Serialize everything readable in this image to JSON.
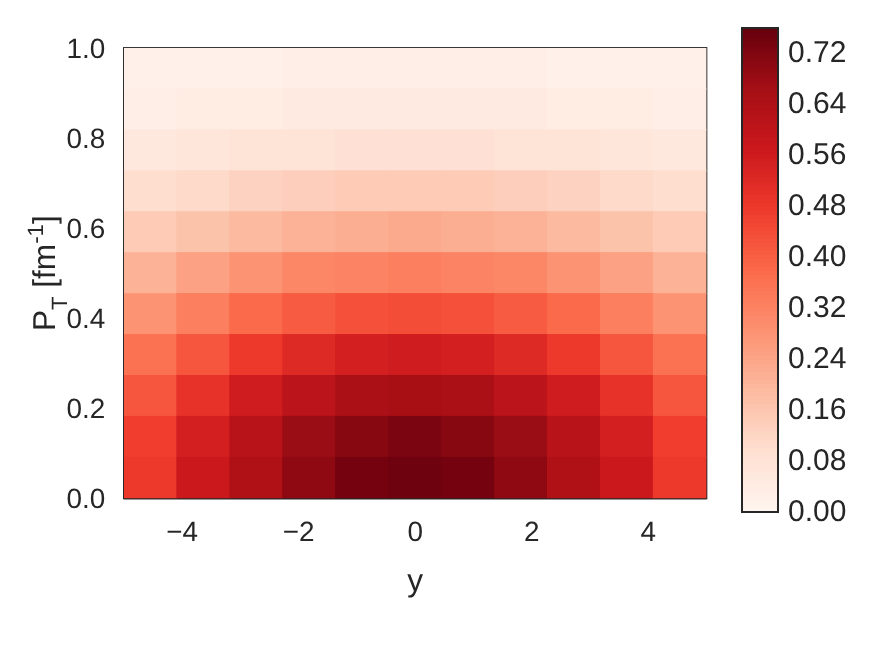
{
  "chart_data": {
    "type": "heatmap",
    "xlabel": "y",
    "ylabel": "P$_{T}$ [fm$^{-1}$]",
    "xlim": [
      -5,
      5
    ],
    "xticks": [
      {
        "value": -4,
        "label": "−4"
      },
      {
        "value": -2,
        "label": "−2"
      },
      0,
      2,
      4
    ],
    "ylim": [
      0,
      1
    ],
    "yticks": [
      {
        "value": 0,
        "label": "0.0"
      },
      {
        "value": 0.2,
        "label": "0.2"
      },
      {
        "value": 0.4,
        "label": "0.4"
      },
      {
        "value": 0.6,
        "label": "0.6"
      },
      {
        "value": 0.8,
        "label": "0.8"
      },
      {
        "value": 1,
        "label": "1.0"
      }
    ],
    "clim": [
      0,
      0.76
    ],
    "cticks": [
      {
        "value": 0,
        "label": "0.00"
      },
      {
        "value": 0.08,
        "label": "0.08"
      },
      {
        "value": 0.16,
        "label": "0.16"
      },
      {
        "value": 0.24,
        "label": "0.24"
      },
      {
        "value": 0.32,
        "label": "0.32"
      },
      {
        "value": 0.4,
        "label": "0.40"
      },
      {
        "value": 0.48,
        "label": "0.48"
      },
      {
        "value": 0.56,
        "label": "0.56"
      },
      {
        "value": 0.64,
        "label": "0.64"
      },
      {
        "value": 0.72,
        "label": "0.72"
      }
    ],
    "cells": [
      [
        0.02,
        0.02,
        0.02,
        0.03,
        0.03,
        0.03,
        0.03,
        0.03,
        0.02,
        0.02,
        0.02
      ],
      [
        0.03,
        0.04,
        0.04,
        0.05,
        0.05,
        0.05,
        0.05,
        0.05,
        0.04,
        0.04,
        0.03
      ],
      [
        0.06,
        0.07,
        0.08,
        0.08,
        0.09,
        0.09,
        0.09,
        0.08,
        0.08,
        0.07,
        0.06
      ],
      [
        0.1,
        0.11,
        0.13,
        0.14,
        0.15,
        0.15,
        0.15,
        0.14,
        0.13,
        0.11,
        0.1
      ],
      [
        0.15,
        0.17,
        0.19,
        0.21,
        0.22,
        0.23,
        0.22,
        0.21,
        0.19,
        0.17,
        0.15
      ],
      [
        0.21,
        0.25,
        0.28,
        0.31,
        0.32,
        0.33,
        0.32,
        0.31,
        0.28,
        0.25,
        0.21
      ],
      [
        0.28,
        0.33,
        0.38,
        0.41,
        0.43,
        0.44,
        0.43,
        0.41,
        0.38,
        0.33,
        0.28
      ],
      [
        0.36,
        0.42,
        0.48,
        0.52,
        0.55,
        0.56,
        0.55,
        0.52,
        0.48,
        0.42,
        0.36
      ],
      [
        0.42,
        0.5,
        0.56,
        0.61,
        0.65,
        0.66,
        0.65,
        0.61,
        0.56,
        0.5,
        0.42
      ],
      [
        0.47,
        0.55,
        0.62,
        0.68,
        0.71,
        0.73,
        0.71,
        0.68,
        0.62,
        0.55,
        0.47
      ],
      [
        0.48,
        0.57,
        0.64,
        0.7,
        0.74,
        0.75,
        0.74,
        0.7,
        0.64,
        0.57,
        0.48
      ]
    ]
  }
}
